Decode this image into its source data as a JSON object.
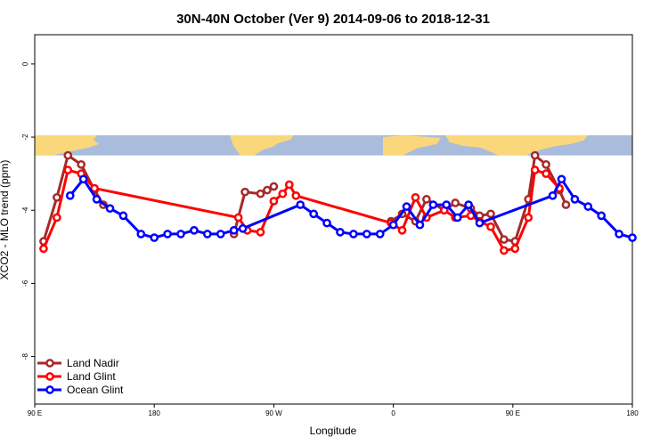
{
  "chart_data": {
    "type": "line",
    "title": "30N-40N October (Ver 9)   2014-09-06 to 2018-12-31",
    "xlabel": "Longitude",
    "ylabel": "XCO2 - MLO trend (ppm)",
    "xlim": [
      -90,
      180
    ],
    "ylim": [
      -9.3,
      0.8
    ],
    "x_ticks": [
      {
        "value": -90,
        "label": "90 E"
      },
      {
        "value": -36,
        "label": "180"
      },
      {
        "value": 18,
        "label": "90 W"
      },
      {
        "value": 72,
        "label": "0"
      },
      {
        "value": 126,
        "label": "90 E"
      },
      {
        "value": 180,
        "label": "180"
      }
    ],
    "y_ticks": [
      {
        "value": 0,
        "label": "0"
      },
      {
        "value": -2,
        "label": "-2"
      },
      {
        "value": -4,
        "label": "-4"
      },
      {
        "value": -6,
        "label": "-6"
      },
      {
        "value": -8,
        "label": "-8"
      }
    ],
    "map_band": {
      "y_top": -1.95,
      "y_bottom": -2.5,
      "ocean_color": "#a9bcdc",
      "land_color": "#fad77a"
    },
    "legend_position": "bottom-left",
    "grid": false,
    "series": [
      {
        "name": "Land Nadir",
        "color": "#a52a2a",
        "x": [
          -86,
          -80,
          -75,
          -69,
          -63,
          -59,
          -52,
          0,
          5,
          12,
          15,
          18,
          22,
          71,
          76,
          82,
          87,
          95,
          100,
          107,
          111,
          116,
          122,
          127,
          133,
          136,
          141,
          147,
          150
        ],
        "y": [
          -4.85,
          -3.65,
          -2.5,
          -2.75,
          -3.45,
          -3.85,
          null,
          -4.65,
          -3.5,
          -3.55,
          -3.45,
          -3.35,
          null,
          -4.3,
          -4.1,
          -4.3,
          -3.7,
          -4.0,
          -3.8,
          -3.95,
          -4.15,
          -4.1,
          -4.8,
          -4.85,
          -3.7,
          -2.5,
          -2.75,
          -3.45,
          -3.85
        ]
      },
      {
        "name": "Land Glint",
        "color": "#ff0000",
        "x": [
          -86,
          -80,
          -75,
          -69,
          -63,
          2,
          6,
          12,
          18,
          22,
          25,
          28,
          71,
          76,
          82,
          87,
          95,
          100,
          107,
          111,
          116,
          122,
          127,
          133,
          136,
          141,
          147
        ],
        "y": [
          -5.05,
          -4.2,
          -2.9,
          -3.0,
          -3.4,
          -4.2,
          -4.55,
          -4.6,
          -3.75,
          -3.55,
          -3.3,
          -3.6,
          -4.35,
          -4.55,
          -3.65,
          -4.2,
          -4.0,
          -4.2,
          -4.15,
          -4.3,
          -4.45,
          -5.1,
          -5.05,
          -4.2,
          -2.9,
          -3.0,
          -3.4
        ]
      },
      {
        "name": "Ocean Glint",
        "color": "#0000ff",
        "x": [
          -74,
          -68,
          -62,
          -56,
          -50,
          -42,
          -36,
          -30,
          -24,
          -18,
          -12,
          -6,
          0,
          4,
          30,
          36,
          42,
          48,
          54,
          60,
          66,
          72,
          78,
          84,
          90,
          96,
          101,
          106,
          111,
          144,
          148,
          154,
          160,
          166,
          174,
          180
        ],
        "y": [
          -3.6,
          -3.15,
          -3.7,
          -3.95,
          -4.15,
          -4.65,
          -4.75,
          -4.65,
          -4.65,
          -4.55,
          -4.65,
          -4.65,
          -4.55,
          -4.5,
          -3.85,
          -4.1,
          -4.35,
          -4.6,
          -4.65,
          -4.65,
          -4.65,
          -4.4,
          -3.9,
          -4.4,
          -3.85,
          -3.85,
          -4.2,
          -3.85,
          -4.35,
          -3.6,
          -3.15,
          -3.7,
          -3.9,
          -4.15,
          -4.65,
          -4.75
        ]
      }
    ]
  }
}
